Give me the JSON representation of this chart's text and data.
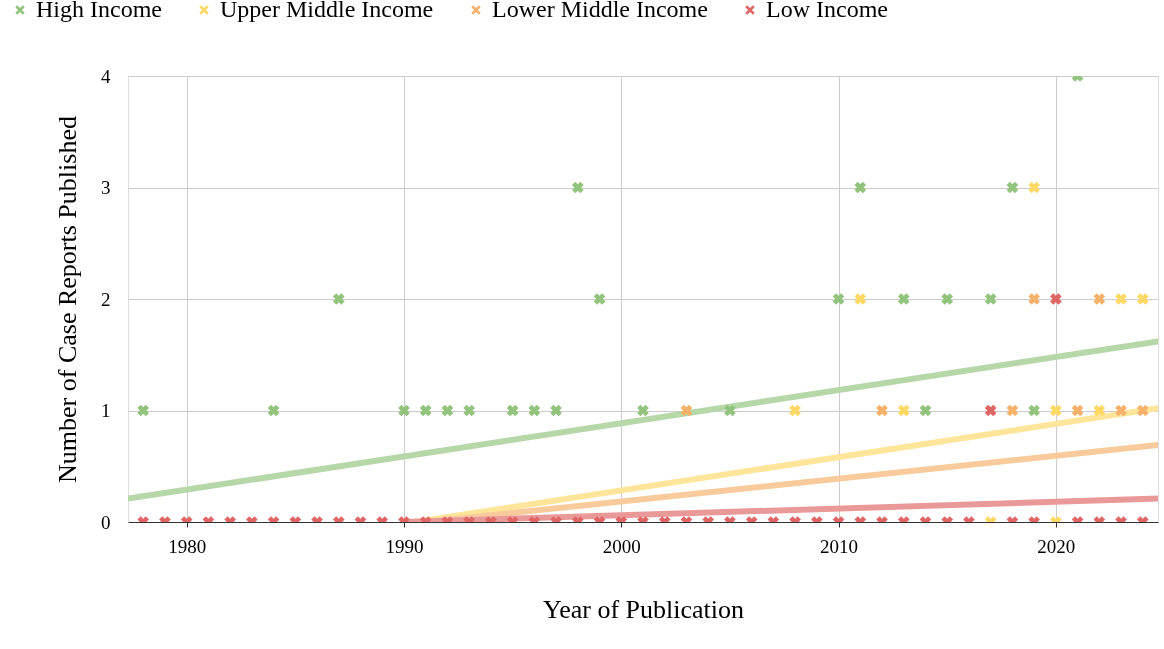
{
  "chart_data": {
    "type": "scatter",
    "xlabel": "Year of Publication",
    "ylabel": "Number of Case Reports Published",
    "xlim": [
      1977.3,
      2024.7
    ],
    "ylim": [
      0,
      4
    ],
    "xticks": [
      1980,
      1990,
      2000,
      2010,
      2020
    ],
    "yticks": [
      0,
      1,
      2,
      3,
      4
    ],
    "grid": true,
    "legend": "top",
    "marker": "cross",
    "series": [
      {
        "type": "line",
        "marker": "none",
        "color": "#b6d7a8",
        "x": [
          1977.3,
          2024.7
        ],
        "values": [
          0.21,
          1.62
        ]
      },
      {
        "type": "line",
        "marker": "none",
        "color": "#ffe599",
        "x": [
          1990.5,
          2024.7
        ],
        "values": [
          0,
          1.02
        ]
      },
      {
        "type": "line",
        "marker": "none",
        "color": "#f9cb9c",
        "x": [
          1991,
          2024.7
        ],
        "values": [
          0,
          0.69
        ]
      },
      {
        "type": "line",
        "marker": "none",
        "color": "#ea9999",
        "x": [
          1990,
          2024.7
        ],
        "values": [
          0,
          0.21
        ]
      },
      {
        "name": "High Income",
        "color": "#93c47d",
        "x": [
          1978,
          1984,
          1987,
          1990,
          1991,
          1992,
          1993,
          1995,
          1996,
          1997,
          1998,
          1999,
          2001,
          2005,
          2010,
          2011,
          2013,
          2014,
          2015,
          2017,
          2018,
          2019,
          2021
        ],
        "values": [
          1,
          1,
          2,
          1,
          1,
          1,
          1,
          1,
          1,
          1,
          3,
          2,
          1,
          1,
          2,
          3,
          2,
          1,
          2,
          2,
          3,
          1,
          4
        ]
      },
      {
        "name": "Upper Middle Income",
        "color": "#ffd966",
        "x": [
          2008,
          2011,
          2013,
          2017,
          2019,
          2020,
          2020,
          2022,
          2023,
          2024
        ],
        "values": [
          1,
          2,
          1,
          0,
          3,
          1,
          0,
          1,
          2,
          2
        ]
      },
      {
        "name": "Lower Middle Income",
        "color": "#f6b26b",
        "x": [
          2003,
          2012,
          2018,
          2019,
          2021,
          2022,
          2023,
          2024
        ],
        "values": [
          1,
          1,
          1,
          2,
          1,
          2,
          1,
          1
        ]
      },
      {
        "name": "Low Income",
        "color": "#e06666",
        "x": [
          1978,
          1979,
          1980,
          1981,
          1982,
          1983,
          1984,
          1985,
          1986,
          1987,
          1988,
          1989,
          1990,
          1991,
          1992,
          1993,
          1994,
          1995,
          1996,
          1997,
          1998,
          1999,
          2000,
          2001,
          2002,
          2003,
          2004,
          2005,
          2006,
          2007,
          2008,
          2009,
          2010,
          2011,
          2012,
          2013,
          2014,
          2015,
          2016,
          2017,
          2018,
          2019,
          2020,
          2021,
          2022,
          2023,
          2024
        ],
        "values": [
          0,
          0,
          0,
          0,
          0,
          0,
          0,
          0,
          0,
          0,
          0,
          0,
          0,
          0,
          0,
          0,
          0,
          0,
          0,
          0,
          0,
          0,
          0,
          0,
          0,
          0,
          0,
          0,
          0,
          0,
          0,
          0,
          0,
          0,
          0,
          0,
          0,
          0,
          0,
          1,
          0,
          0,
          2,
          0,
          0,
          0,
          0
        ]
      }
    ]
  }
}
